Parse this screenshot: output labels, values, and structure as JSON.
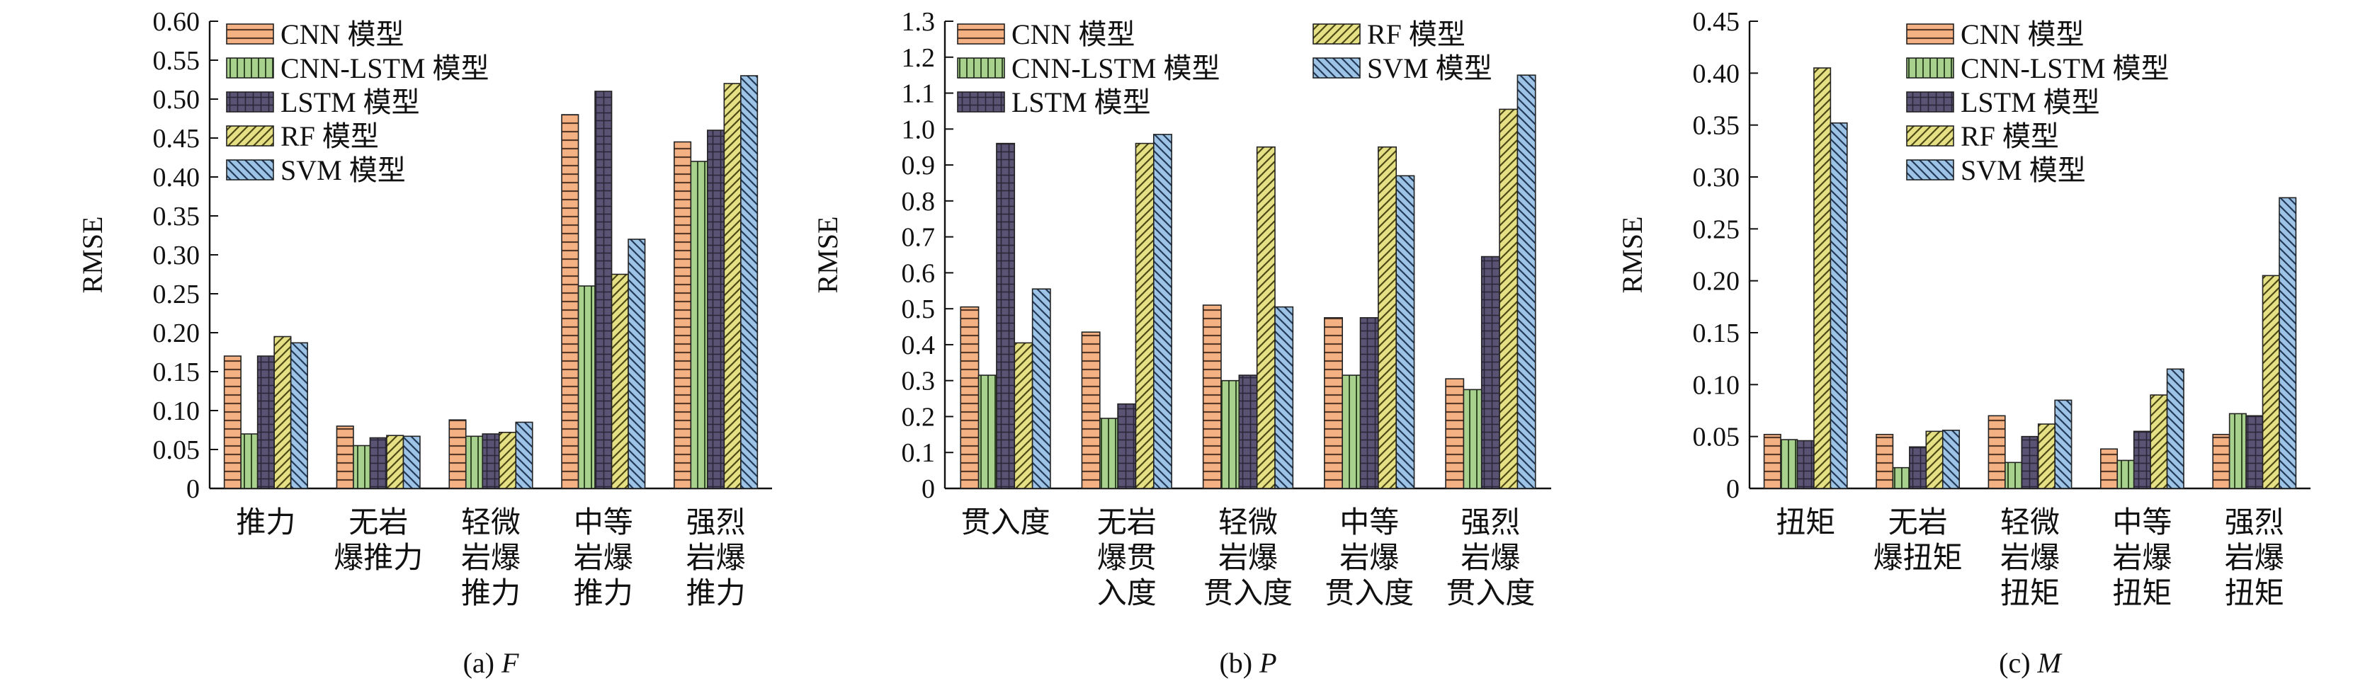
{
  "legend_order": [
    "CNN 模型",
    "CNN-LSTM 模型",
    "LSTM 模型",
    "RF 模型",
    "SVM 模型"
  ],
  "series_style": [
    {
      "name": "CNN 模型",
      "fill": "#f4b183",
      "pattern": "horizontal"
    },
    {
      "name": "CNN-LSTM 模型",
      "fill": "#a9d18e",
      "pattern": "vertical"
    },
    {
      "name": "LSTM 模型",
      "fill": "#5b5373",
      "pattern": "grid"
    },
    {
      "name": "RF 模型",
      "fill": "#e6e085",
      "pattern": "diagonal-up"
    },
    {
      "name": "SVM 模型",
      "fill": "#9dc3e6",
      "pattern": "diagonal-down"
    }
  ],
  "chart_data": [
    {
      "type": "bar",
      "caption_prefix": "(a) ",
      "caption_var": "F",
      "ylabel": "RMSE",
      "xlabel": "",
      "ylim": [
        0,
        0.6
      ],
      "yticks": [
        0,
        0.05,
        0.1,
        0.15,
        0.2,
        0.25,
        0.3,
        0.35,
        0.4,
        0.45,
        0.5,
        0.55,
        0.6
      ],
      "ytick_labels": [
        "0",
        "0.05",
        "0.10",
        "0.15",
        "0.20",
        "0.25",
        "0.30",
        "0.35",
        "0.40",
        "0.45",
        "0.50",
        "0.55",
        "0.60"
      ],
      "categories": [
        [
          "推力"
        ],
        [
          "无岩",
          "爆推力"
        ],
        [
          "轻微",
          "岩爆",
          "推力"
        ],
        [
          "中等",
          "岩爆",
          "推力"
        ],
        [
          "强烈",
          "岩爆",
          "推力"
        ]
      ],
      "series": [
        {
          "name": "CNN 模型",
          "values": [
            0.17,
            0.08,
            0.088,
            0.48,
            0.445
          ]
        },
        {
          "name": "CNN-LSTM 模型",
          "values": [
            0.07,
            0.055,
            0.067,
            0.26,
            0.42
          ]
        },
        {
          "name": "LSTM 模型",
          "values": [
            0.17,
            0.065,
            0.07,
            0.51,
            0.46
          ]
        },
        {
          "name": "RF 模型",
          "values": [
            0.195,
            0.068,
            0.072,
            0.275,
            0.52
          ]
        },
        {
          "name": "SVM 模型",
          "values": [
            0.187,
            0.067,
            0.085,
            0.32,
            0.53
          ]
        }
      ],
      "legend_layout": "single-column",
      "legend": [
        "CNN 模型",
        "CNN-LSTM 模型",
        "LSTM 模型",
        "RF 模型",
        "SVM 模型"
      ],
      "legend_placement": "top-left",
      "grid": false
    },
    {
      "type": "bar",
      "caption_prefix": "(b) ",
      "caption_var": "P",
      "ylabel": "RMSE",
      "xlabel": "",
      "ylim": [
        0,
        1.3
      ],
      "yticks": [
        0,
        0.1,
        0.2,
        0.3,
        0.4,
        0.5,
        0.6,
        0.7,
        0.8,
        0.9,
        1.0,
        1.1,
        1.2,
        1.3
      ],
      "ytick_labels": [
        "0",
        "0.1",
        "0.2",
        "0.3",
        "0.4",
        "0.5",
        "0.6",
        "0.7",
        "0.8",
        "0.9",
        "1.0",
        "1.1",
        "1.2",
        "1.3"
      ],
      "categories": [
        [
          "贯入度"
        ],
        [
          "无岩",
          "爆贯",
          "入度"
        ],
        [
          "轻微",
          "岩爆",
          "贯入度"
        ],
        [
          "中等",
          "岩爆",
          "贯入度"
        ],
        [
          "强烈",
          "岩爆",
          "贯入度"
        ]
      ],
      "series": [
        {
          "name": "CNN 模型",
          "values": [
            0.505,
            0.435,
            0.51,
            0.475,
            0.305
          ]
        },
        {
          "name": "CNN-LSTM 模型",
          "values": [
            0.315,
            0.195,
            0.3,
            0.315,
            0.275
          ]
        },
        {
          "name": "LSTM 模型",
          "values": [
            0.96,
            0.235,
            0.315,
            0.475,
            0.645
          ]
        },
        {
          "name": "RF 模型",
          "values": [
            0.405,
            0.96,
            0.95,
            0.95,
            1.055
          ]
        },
        {
          "name": "SVM 模型",
          "values": [
            0.555,
            0.985,
            0.505,
            0.87,
            1.15
          ]
        }
      ],
      "legend_layout": "two-column",
      "legend": [
        "CNN 模型",
        "RF 模型",
        "CNN-LSTM 模型",
        "SVM 模型",
        "LSTM 模型"
      ],
      "legend_placement": "top-left",
      "grid": false
    },
    {
      "type": "bar",
      "caption_prefix": "(c) ",
      "caption_var": "M",
      "ylabel": "RMSE",
      "xlabel": "",
      "ylim": [
        0,
        0.45
      ],
      "yticks": [
        0,
        0.05,
        0.1,
        0.15,
        0.2,
        0.25,
        0.3,
        0.35,
        0.4,
        0.45
      ],
      "ytick_labels": [
        "0",
        "0.05",
        "0.10",
        "0.15",
        "0.20",
        "0.25",
        "0.30",
        "0.35",
        "0.40",
        "0.45"
      ],
      "categories": [
        [
          "扭矩"
        ],
        [
          "无岩",
          "爆扭矩"
        ],
        [
          "轻微",
          "岩爆",
          "扭矩"
        ],
        [
          "中等",
          "岩爆",
          "扭矩"
        ],
        [
          "强烈",
          "岩爆",
          "扭矩"
        ]
      ],
      "series": [
        {
          "name": "CNN 模型",
          "values": [
            0.052,
            0.052,
            0.07,
            0.038,
            0.052
          ]
        },
        {
          "name": "CNN-LSTM 模型",
          "values": [
            0.047,
            0.02,
            0.025,
            0.027,
            0.072
          ]
        },
        {
          "name": "LSTM 模型",
          "values": [
            0.046,
            0.04,
            0.05,
            0.055,
            0.07
          ]
        },
        {
          "name": "RF 模型",
          "values": [
            0.405,
            0.055,
            0.062,
            0.09,
            0.205
          ]
        },
        {
          "name": "SVM 模型",
          "values": [
            0.352,
            0.056,
            0.085,
            0.115,
            0.28
          ]
        }
      ],
      "legend_layout": "single-column",
      "legend": [
        "CNN 模型",
        "CNN-LSTM 模型",
        "LSTM 模型",
        "RF 模型",
        "SVM 模型"
      ],
      "legend_placement": "top-left",
      "grid": false
    }
  ]
}
